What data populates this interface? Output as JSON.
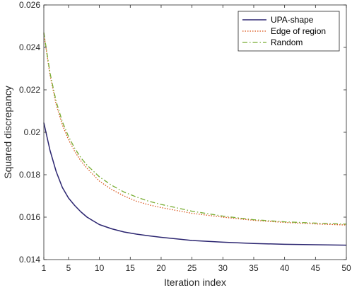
{
  "chart_data": {
    "type": "line",
    "xlabel": "Iteration index",
    "ylabel": "Squared discrepancy",
    "xlim": [
      1,
      50
    ],
    "ylim": [
      0.014,
      0.026
    ],
    "xticks": [
      "1",
      "5",
      "10",
      "15",
      "20",
      "25",
      "30",
      "35",
      "40",
      "45",
      "50"
    ],
    "yticks": [
      "0.014",
      "0.016",
      "0.018",
      "0.02",
      "0.022",
      "0.024",
      "0.026"
    ],
    "grid": false,
    "legend_position": "top-right",
    "x": [
      1,
      2,
      3,
      4,
      5,
      6,
      7,
      8,
      10,
      12,
      14,
      16,
      18,
      20,
      25,
      30,
      35,
      40,
      45,
      50
    ],
    "series": [
      {
        "name": "UPA-shape",
        "color": "#2b2570",
        "style": "solid",
        "values": [
          0.02045,
          0.01915,
          0.01815,
          0.0174,
          0.0169,
          0.01655,
          0.01625,
          0.016,
          0.01565,
          0.01545,
          0.0153,
          0.0152,
          0.01512,
          0.01505,
          0.0149,
          0.01482,
          0.01476,
          0.01472,
          0.0147,
          0.01468
        ]
      },
      {
        "name": "Edge of region",
        "color": "#d95319",
        "style": "dotted",
        "values": [
          0.02465,
          0.0227,
          0.0213,
          0.02035,
          0.01965,
          0.0191,
          0.01865,
          0.0183,
          0.0177,
          0.0173,
          0.017,
          0.01675,
          0.01658,
          0.01645,
          0.01618,
          0.016,
          0.01585,
          0.01575,
          0.01568,
          0.01563
        ]
      },
      {
        "name": "Random",
        "color": "#77ac30",
        "style": "dashdot",
        "values": [
          0.0247,
          0.0228,
          0.02145,
          0.0205,
          0.0198,
          0.01925,
          0.0188,
          0.01845,
          0.0179,
          0.0175,
          0.01718,
          0.01695,
          0.01675,
          0.0166,
          0.01628,
          0.01605,
          0.01588,
          0.01578,
          0.01572,
          0.01567
        ]
      }
    ]
  }
}
